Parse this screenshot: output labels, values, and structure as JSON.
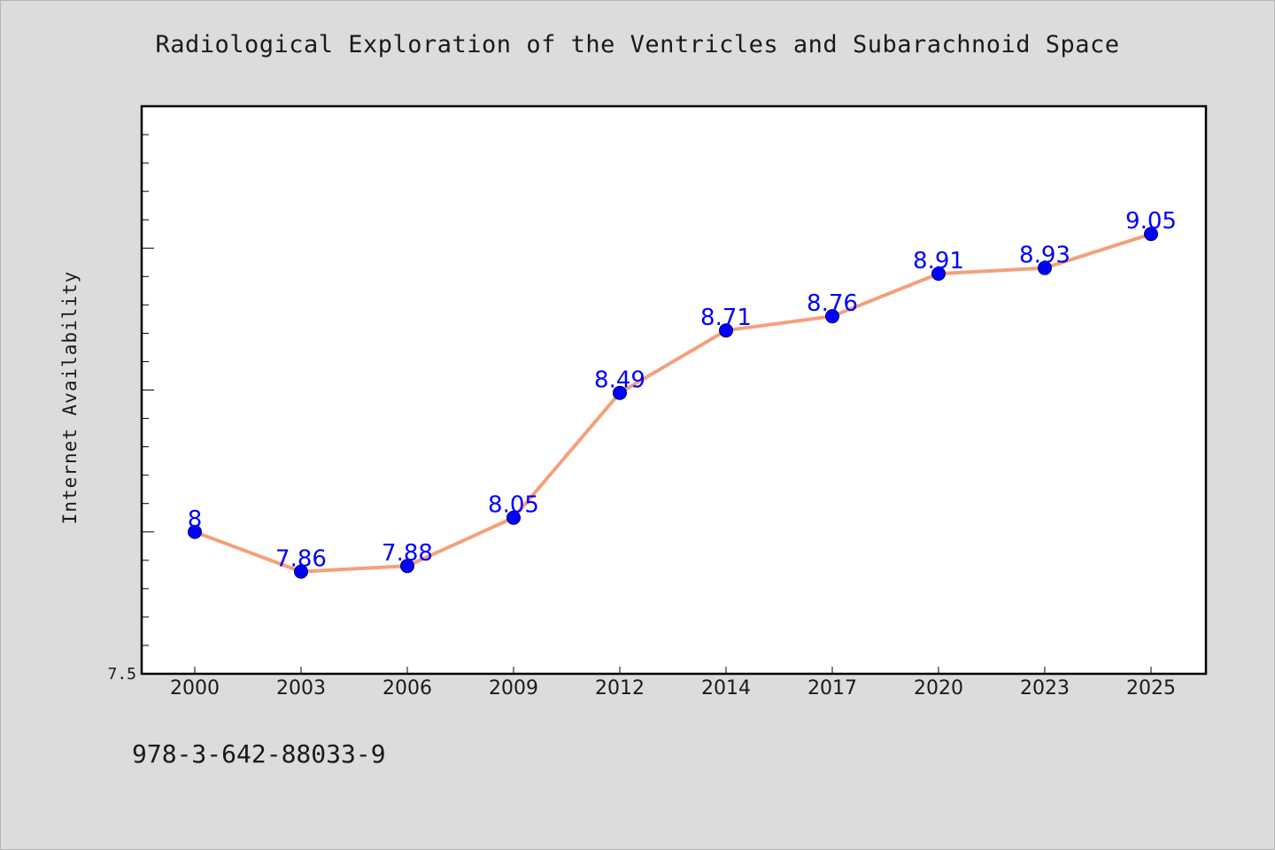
{
  "chart_data": {
    "type": "line",
    "title": "Radiological Exploration of the Ventricles and Subarachnoid Space",
    "xlabel": "",
    "ylabel": "Internet Availability",
    "categories": [
      "2000",
      "2003",
      "2006",
      "2009",
      "2012",
      "2014",
      "2017",
      "2020",
      "2023",
      "2025"
    ],
    "series": [
      {
        "values": [
          8,
          7.86,
          7.88,
          8.05,
          8.49,
          8.71,
          8.76,
          8.91,
          8.93,
          9.05
        ],
        "data_labels": [
          "8",
          "7.86",
          "7.88",
          "8.05",
          "8.49",
          "8.71",
          "8.76",
          "8.91",
          "8.93",
          "9.05"
        ],
        "line_color": "#f4a07c",
        "marker_color": "#0000ff"
      }
    ],
    "ylim": [
      7.5,
      9.5
    ],
    "y_tick_labels": [
      {
        "value": 7.5,
        "label": "7.5"
      }
    ],
    "y_minor_tick_step": 0.1,
    "grid": false,
    "legend": "none"
  },
  "footer": {
    "isbn": "978-3-642-88033-9"
  },
  "colors": {
    "background": "#dcdcdc",
    "plot_background": "#ffffff",
    "axis": "#000000",
    "line": "#f4a07c",
    "marker": "#0000ff",
    "data_label": "#0000ff"
  }
}
